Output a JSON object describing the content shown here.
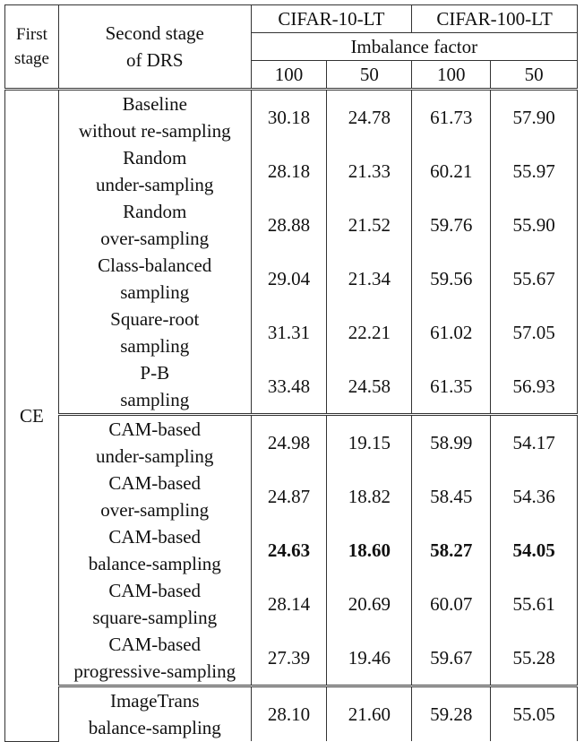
{
  "table": {
    "header": {
      "first_stage": "First\nstage",
      "second_stage": "Second stage\nof DRS",
      "datasets": [
        "CIFAR-10-LT",
        "CIFAR-100-LT"
      ],
      "subheader": "Imbalance factor",
      "factors": [
        "100",
        "50",
        "100",
        "50"
      ]
    },
    "first_stage_value": "CE",
    "groups": [
      {
        "rows": [
          {
            "method": "Baseline\nwithout re-sampling",
            "values": [
              "30.18",
              "24.78",
              "61.73",
              "57.90"
            ]
          },
          {
            "method": "Random\nunder-sampling",
            "values": [
              "28.18",
              "21.33",
              "60.21",
              "55.97"
            ]
          },
          {
            "method": "Random\nover-sampling",
            "values": [
              "28.88",
              "21.52",
              "59.76",
              "55.90"
            ]
          },
          {
            "method": "Class-balanced\nsampling",
            "values": [
              "29.04",
              "21.34",
              "59.56",
              "55.67"
            ]
          },
          {
            "method": "Square-root\nsampling",
            "values": [
              "31.31",
              "22.21",
              "61.02",
              "57.05"
            ]
          },
          {
            "method": "P-B\nsampling",
            "values": [
              "33.48",
              "24.58",
              "61.35",
              "56.93"
            ]
          }
        ]
      },
      {
        "rows": [
          {
            "method": "CAM-based\nunder-sampling",
            "values": [
              "24.98",
              "19.15",
              "58.99",
              "54.17"
            ]
          },
          {
            "method": "CAM-based\nover-sampling",
            "values": [
              "24.87",
              "18.82",
              "58.45",
              "54.36"
            ]
          },
          {
            "method": "CAM-based\nbalance-sampling",
            "values": [
              "24.63",
              "18.60",
              "58.27",
              "54.05"
            ]
          },
          {
            "method": "CAM-based\nsquare-sampling",
            "values": [
              "28.14",
              "20.69",
              "60.07",
              "55.61"
            ]
          },
          {
            "method": "CAM-based\nprogressive-sampling",
            "values": [
              "27.39",
              "19.46",
              "59.67",
              "55.28"
            ]
          }
        ]
      },
      {
        "rows": [
          {
            "method": "ImageTrans\nbalance-sampling",
            "values": [
              "28.10",
              "21.60",
              "59.28",
              "55.05"
            ]
          }
        ]
      }
    ]
  }
}
